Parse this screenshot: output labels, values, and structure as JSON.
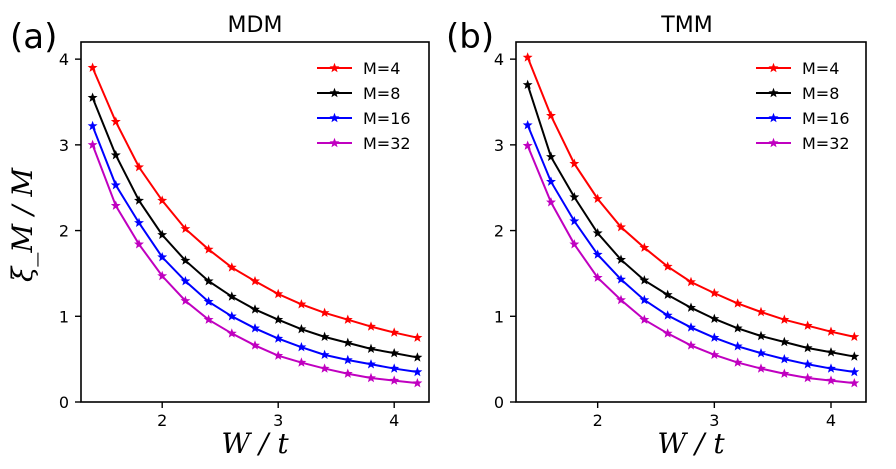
{
  "chart_data": [
    {
      "type": "line",
      "panel_label": "(a)",
      "title": "MDM",
      "xlabel": "W / t",
      "ylabel": "ξ_M / M",
      "xlim": [
        1.3,
        4.3
      ],
      "ylim": [
        0,
        4.2
      ],
      "xticks": [
        2,
        3,
        4
      ],
      "yticks": [
        0,
        1,
        2,
        3,
        4
      ],
      "legend_position": "top-right",
      "x": [
        1.4,
        1.6,
        1.8,
        2.0,
        2.2,
        2.4,
        2.6,
        2.8,
        3.0,
        3.2,
        3.4,
        3.6,
        3.8,
        4.0,
        4.2
      ],
      "series": [
        {
          "name": "M=4",
          "color": "#ff0000",
          "values": [
            3.9,
            3.27,
            2.74,
            2.35,
            2.02,
            1.78,
            1.57,
            1.41,
            1.26,
            1.14,
            1.04,
            0.96,
            0.88,
            0.81,
            0.75
          ]
        },
        {
          "name": "M=8",
          "color": "#000000",
          "values": [
            3.55,
            2.88,
            2.35,
            1.95,
            1.65,
            1.41,
            1.23,
            1.08,
            0.96,
            0.85,
            0.76,
            0.69,
            0.62,
            0.57,
            0.52
          ]
        },
        {
          "name": "M=16",
          "color": "#0000ff",
          "values": [
            3.22,
            2.53,
            2.09,
            1.69,
            1.41,
            1.17,
            1.0,
            0.86,
            0.74,
            0.64,
            0.55,
            0.49,
            0.44,
            0.39,
            0.35
          ]
        },
        {
          "name": "M=32",
          "color": "#c000c0",
          "values": [
            3.0,
            2.29,
            1.84,
            1.47,
            1.18,
            0.96,
            0.8,
            0.66,
            0.54,
            0.46,
            0.39,
            0.33,
            0.28,
            0.25,
            0.22
          ]
        }
      ]
    },
    {
      "type": "line",
      "panel_label": "(b)",
      "title": "TMM",
      "xlabel": "W / t",
      "ylabel": "",
      "xlim": [
        1.3,
        4.3
      ],
      "ylim": [
        0,
        4.2
      ],
      "xticks": [
        2,
        3,
        4
      ],
      "yticks": [
        0,
        1,
        2,
        3,
        4
      ],
      "legend_position": "top-right",
      "x": [
        1.4,
        1.6,
        1.8,
        2.0,
        2.2,
        2.4,
        2.6,
        2.8,
        3.0,
        3.2,
        3.4,
        3.6,
        3.8,
        4.0,
        4.2
      ],
      "series": [
        {
          "name": "M=4",
          "color": "#ff0000",
          "values": [
            4.02,
            3.34,
            2.78,
            2.37,
            2.04,
            1.8,
            1.58,
            1.4,
            1.27,
            1.15,
            1.05,
            0.96,
            0.89,
            0.82,
            0.76
          ]
        },
        {
          "name": "M=8",
          "color": "#000000",
          "values": [
            3.7,
            2.86,
            2.39,
            1.97,
            1.66,
            1.42,
            1.25,
            1.1,
            0.97,
            0.86,
            0.77,
            0.7,
            0.63,
            0.58,
            0.53
          ]
        },
        {
          "name": "M=16",
          "color": "#0000ff",
          "values": [
            3.23,
            2.57,
            2.11,
            1.72,
            1.43,
            1.19,
            1.01,
            0.87,
            0.75,
            0.65,
            0.57,
            0.5,
            0.44,
            0.39,
            0.35
          ]
        },
        {
          "name": "M=32",
          "color": "#c000c0",
          "values": [
            2.99,
            2.33,
            1.84,
            1.45,
            1.19,
            0.96,
            0.8,
            0.66,
            0.55,
            0.46,
            0.39,
            0.33,
            0.28,
            0.25,
            0.22
          ]
        }
      ]
    }
  ]
}
